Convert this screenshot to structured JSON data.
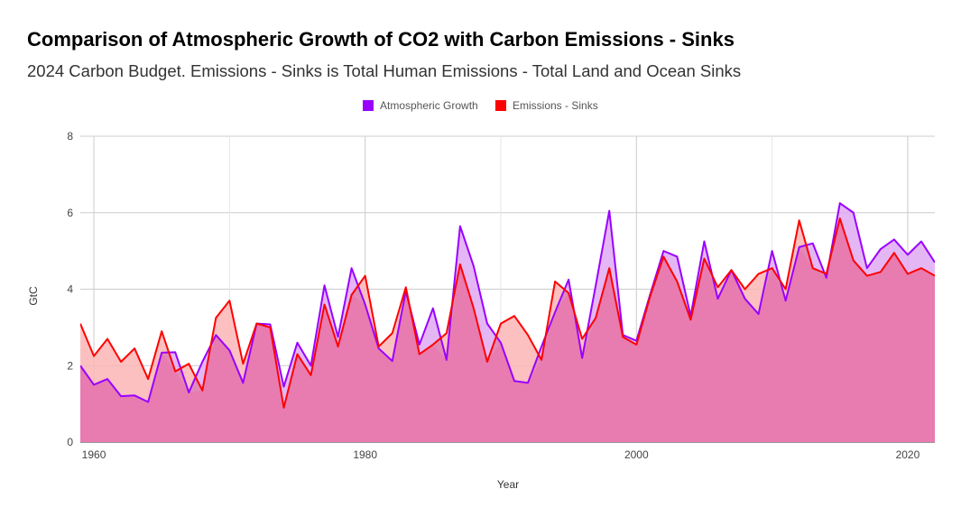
{
  "chart_data": {
    "type": "area",
    "title": "Comparison of Atmospheric Growth of CO2 with Carbon Emissions - Sinks",
    "subtitle": "2024 Carbon Budget. Emissions - Sinks is Total Human Emissions  -  Total Land and Ocean Sinks",
    "xlabel": "Year",
    "ylabel": "GtC",
    "xlim": [
      1959,
      2022
    ],
    "ylim": [
      0,
      8
    ],
    "xticks": [
      1960,
      1980,
      2000,
      2020
    ],
    "yticks": [
      0,
      2,
      4,
      6,
      8
    ],
    "grid": true,
    "legend_position": "top",
    "x": [
      1959,
      1960,
      1961,
      1962,
      1963,
      1964,
      1965,
      1966,
      1967,
      1968,
      1969,
      1970,
      1971,
      1972,
      1973,
      1974,
      1975,
      1976,
      1977,
      1978,
      1979,
      1980,
      1981,
      1982,
      1983,
      1984,
      1985,
      1986,
      1987,
      1988,
      1989,
      1990,
      1991,
      1992,
      1993,
      1994,
      1995,
      1996,
      1997,
      1998,
      1999,
      2000,
      2001,
      2002,
      2003,
      2004,
      2005,
      2006,
      2007,
      2008,
      2009,
      2010,
      2011,
      2012,
      2013,
      2014,
      2015,
      2016,
      2017,
      2018,
      2019,
      2020,
      2021,
      2022
    ],
    "series": [
      {
        "name": "Atmospheric Growth",
        "color": "#9900ff",
        "fill": "#e1a9f2",
        "values": [
          2.0,
          1.5,
          1.65,
          1.2,
          1.22,
          1.05,
          2.34,
          2.35,
          1.3,
          2.1,
          2.8,
          2.4,
          1.55,
          3.1,
          3.08,
          1.45,
          2.6,
          2.0,
          4.1,
          2.75,
          4.55,
          3.6,
          2.45,
          2.12,
          3.95,
          2.55,
          3.5,
          2.15,
          5.65,
          4.6,
          3.1,
          2.6,
          1.6,
          1.55,
          2.5,
          3.4,
          4.25,
          2.2,
          4.1,
          6.05,
          2.8,
          2.65,
          3.85,
          5.0,
          4.85,
          3.3,
          5.25,
          3.75,
          4.5,
          3.75,
          3.35,
          5.0,
          3.7,
          5.1,
          5.2,
          4.3,
          6.25,
          6.0,
          4.55,
          5.05,
          5.3,
          4.9,
          5.25,
          4.7
        ]
      },
      {
        "name": "Emissions - Sinks",
        "color": "#ff0000",
        "fill": "#fcb5b5",
        "values": [
          3.1,
          2.25,
          2.7,
          2.1,
          2.45,
          1.65,
          2.9,
          1.85,
          2.05,
          1.35,
          3.25,
          3.7,
          2.05,
          3.1,
          3.0,
          0.9,
          2.3,
          1.75,
          3.6,
          2.5,
          3.85,
          4.35,
          2.5,
          2.85,
          4.05,
          2.3,
          2.55,
          2.85,
          4.65,
          3.5,
          2.1,
          3.1,
          3.3,
          2.8,
          2.15,
          4.2,
          3.9,
          2.7,
          3.25,
          4.55,
          2.75,
          2.55,
          3.8,
          4.85,
          4.2,
          3.2,
          4.8,
          4.05,
          4.5,
          4.0,
          4.4,
          4.55,
          4.0,
          5.8,
          4.55,
          4.4,
          5.85,
          4.75,
          4.35,
          4.45,
          4.95,
          4.4,
          4.55,
          4.35
        ]
      }
    ]
  }
}
